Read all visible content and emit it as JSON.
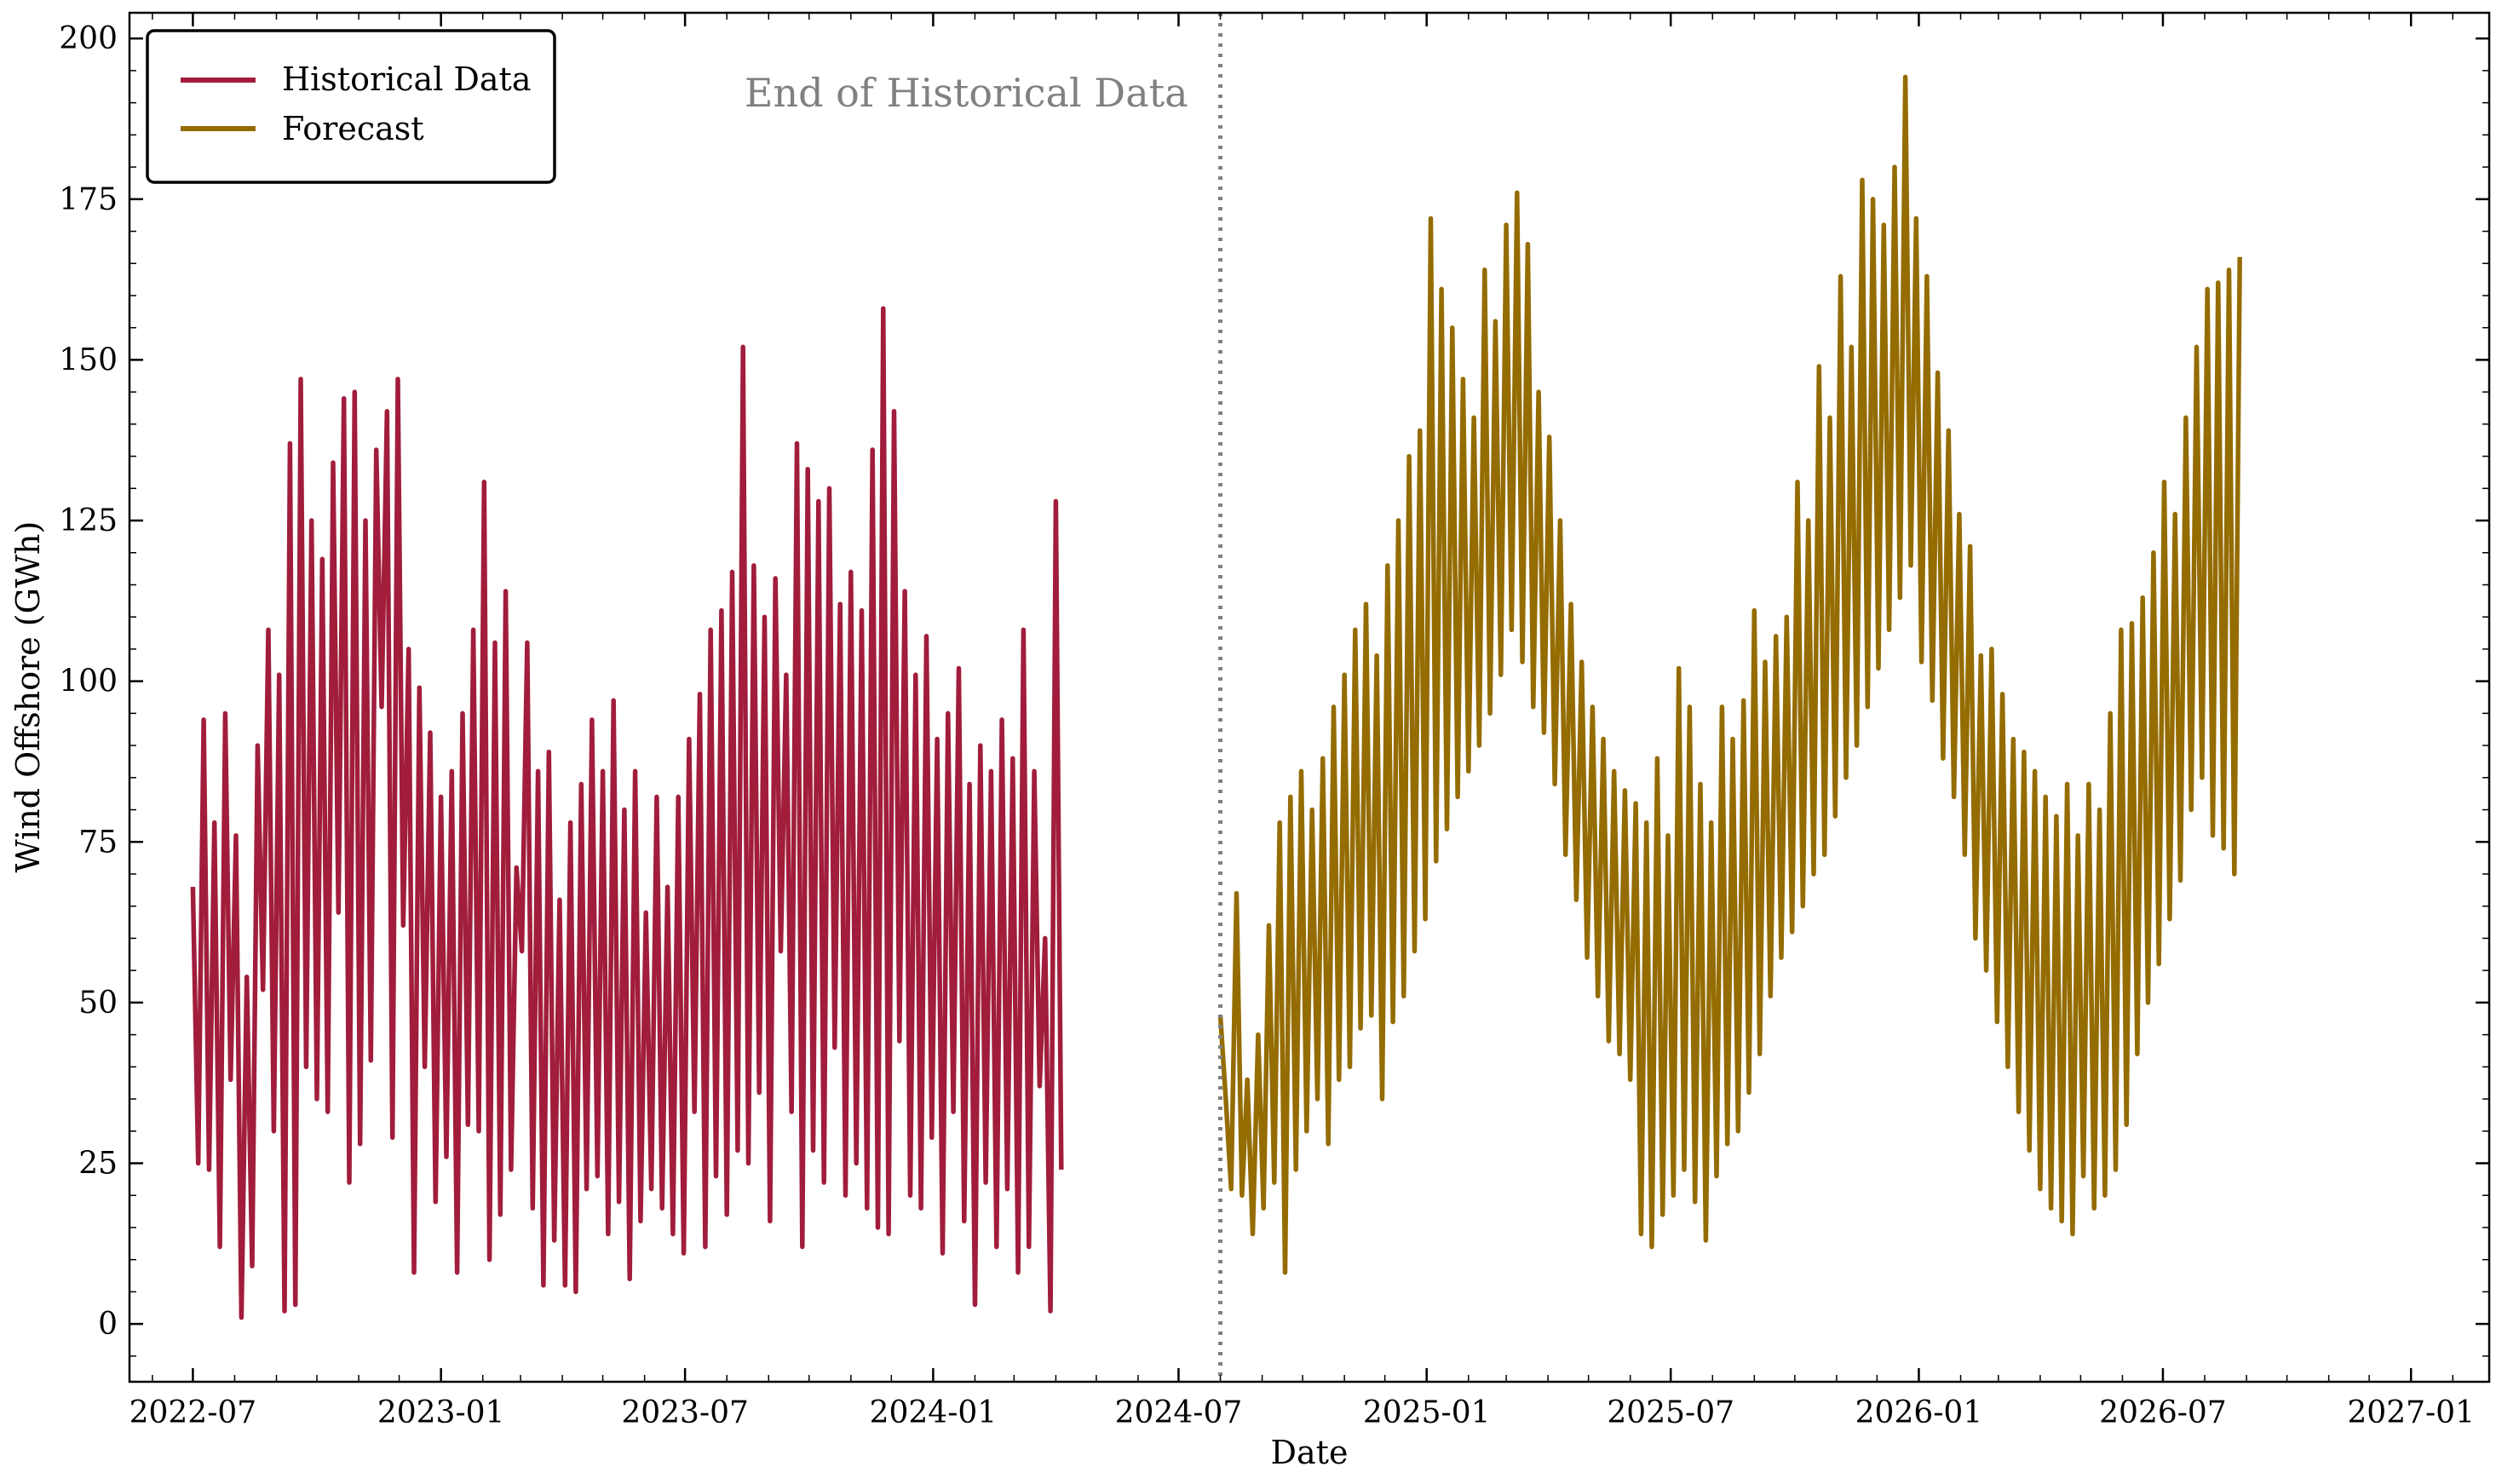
{
  "chart_data": {
    "type": "line",
    "xlabel": "Date",
    "ylabel": "Wind Offshore (GWh)",
    "ylim": [
      -9,
      204
    ],
    "yticks": [
      0,
      25,
      50,
      75,
      100,
      125,
      150,
      175,
      200
    ],
    "xticks": [
      "2022-07",
      "2023-01",
      "2023-07",
      "2024-01",
      "2024-07",
      "2025-01",
      "2025-07",
      "2026-01",
      "2026-07",
      "2027-01"
    ],
    "xlim": [
      "2022-05-15",
      "2027-02-28"
    ],
    "grid": false,
    "legend_position": "upper-left",
    "annotation": {
      "text": "End of Historical Data",
      "date": "2024-08-01"
    },
    "colors": {
      "historical": "#a11d3b",
      "forecast": "#946c00",
      "divider": "#808080"
    },
    "series": [
      {
        "name": "Historical Data",
        "color": "#a11d3b",
        "sampling": "every 4 days",
        "start": "2022-07-01",
        "values": [
          68,
          25,
          94,
          24,
          78,
          12,
          95,
          38,
          76,
          1,
          54,
          9,
          90,
          52,
          108,
          30,
          101,
          2,
          137,
          3,
          147,
          40,
          125,
          35,
          119,
          33,
          134,
          64,
          144,
          22,
          145,
          28,
          125,
          41,
          136,
          96,
          142,
          29,
          147,
          62,
          105,
          8,
          99,
          40,
          92,
          19,
          82,
          26,
          86,
          8,
          95,
          31,
          108,
          30,
          131,
          10,
          106,
          17,
          114,
          24,
          71,
          58,
          106,
          18,
          86,
          6,
          89,
          13,
          66,
          6,
          78,
          5,
          84,
          21,
          94,
          23,
          86,
          14,
          97,
          19,
          80,
          7,
          86,
          16,
          64,
          21,
          82,
          18,
          68,
          14,
          82,
          11,
          91,
          33,
          98,
          12,
          108,
          23,
          111,
          17,
          117,
          27,
          152,
          25,
          118,
          36,
          110,
          16,
          116,
          58,
          101,
          33,
          137,
          12,
          133,
          27,
          128,
          22,
          130,
          43,
          112,
          20,
          117,
          25,
          111,
          18,
          136,
          15,
          158,
          14,
          142,
          44,
          114,
          20,
          101,
          18,
          107,
          29,
          91,
          11,
          95,
          33,
          102,
          16,
          84,
          3,
          90,
          22,
          86,
          12,
          94,
          21,
          88,
          8,
          108,
          12,
          86,
          37,
          60,
          2,
          128,
          24
        ]
      },
      {
        "name": "Forecast",
        "color": "#946c00",
        "sampling": "every 4 days",
        "start": "2024-08-01",
        "values": [
          48,
          35,
          21,
          67,
          20,
          38,
          14,
          45,
          18,
          62,
          22,
          78,
          8,
          82,
          24,
          86,
          30,
          80,
          35,
          88,
          28,
          96,
          38,
          101,
          40,
          108,
          46,
          112,
          48,
          104,
          35,
          118,
          47,
          125,
          51,
          135,
          58,
          139,
          63,
          172,
          72,
          161,
          77,
          155,
          82,
          147,
          86,
          141,
          90,
          164,
          95,
          156,
          101,
          171,
          108,
          176,
          103,
          168,
          96,
          145,
          92,
          138,
          84,
          125,
          73,
          112,
          66,
          103,
          57,
          96,
          51,
          91,
          44,
          86,
          42,
          83,
          38,
          81,
          14,
          78,
          12,
          88,
          17,
          76,
          20,
          102,
          24,
          96,
          19,
          84,
          13,
          78,
          23,
          96,
          28,
          91,
          30,
          97,
          36,
          111,
          42,
          103,
          51,
          107,
          57,
          110,
          61,
          131,
          65,
          125,
          70,
          149,
          73,
          141,
          79,
          163,
          85,
          152,
          90,
          178,
          96,
          175,
          102,
          171,
          108,
          180,
          113,
          194,
          118,
          172,
          103,
          163,
          97,
          148,
          88,
          139,
          82,
          126,
          73,
          121,
          60,
          104,
          55,
          105,
          47,
          98,
          40,
          91,
          33,
          89,
          27,
          86,
          21,
          82,
          18,
          79,
          16,
          84,
          14,
          76,
          23,
          84,
          18,
          80,
          20,
          95,
          24,
          108,
          31,
          109,
          42,
          113,
          50,
          120,
          56,
          131,
          63,
          126,
          69,
          141,
          80,
          152,
          85,
          161,
          76,
          162,
          74,
          164,
          70,
          166
        ]
      }
    ]
  },
  "legend": {
    "items": [
      {
        "label": "Historical Data",
        "color": "#a11d3b"
      },
      {
        "label": "Forecast",
        "color": "#946c00"
      }
    ]
  }
}
